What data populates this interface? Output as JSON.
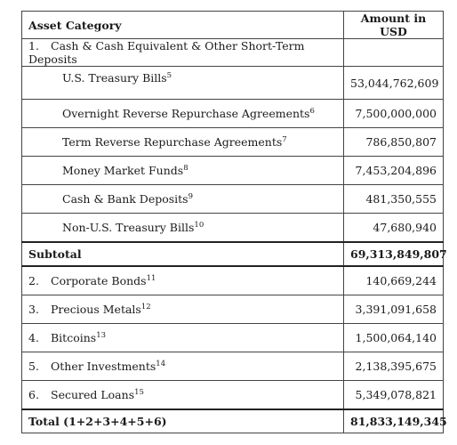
{
  "header": {
    "category_label": "Asset Category",
    "amount_label": "Amount in USD"
  },
  "section1": {
    "number": "1.",
    "label": "Cash & Cash Equivalent & Other Short-Term Deposits",
    "items": [
      {
        "label": "U.S. Treasury Bills",
        "footnote": "5",
        "amount": "53,044,762,609"
      },
      {
        "label": "Overnight Reverse Repurchase Agreements",
        "footnote": "6",
        "amount": "7,500,000,000"
      },
      {
        "label": "Term Reverse Repurchase Agreements",
        "footnote": "7",
        "amount": "786,850,807"
      },
      {
        "label": "Money Market Funds",
        "footnote": "8",
        "amount": "7,453,204,896"
      },
      {
        "label": "Cash & Bank Deposits",
        "footnote": "9",
        "amount": "481,350,555"
      },
      {
        "label": "Non-U.S. Treasury Bills",
        "footnote": "10",
        "amount": "47,680,940"
      }
    ]
  },
  "subtotal": {
    "label": "Subtotal",
    "amount": "69,313,849,807"
  },
  "categories": [
    {
      "number": "2.",
      "label": "Corporate Bonds",
      "footnote": "11",
      "amount": "140,669,244"
    },
    {
      "number": "3.",
      "label": "Precious Metals",
      "footnote": "12",
      "amount": "3,391,091,658"
    },
    {
      "number": "4.",
      "label": "Bitcoins",
      "footnote": "13",
      "amount": "1,500,064,140"
    },
    {
      "number": "5.",
      "label": "Other Investments",
      "footnote": "14",
      "amount": "2,138,395,675"
    },
    {
      "number": "6.",
      "label": "Secured Loans",
      "footnote": "15",
      "amount": "5,349,078,821"
    }
  ],
  "total": {
    "label": "Total (1+2+3+4+5+6)",
    "amount": "81,833,149,345"
  }
}
